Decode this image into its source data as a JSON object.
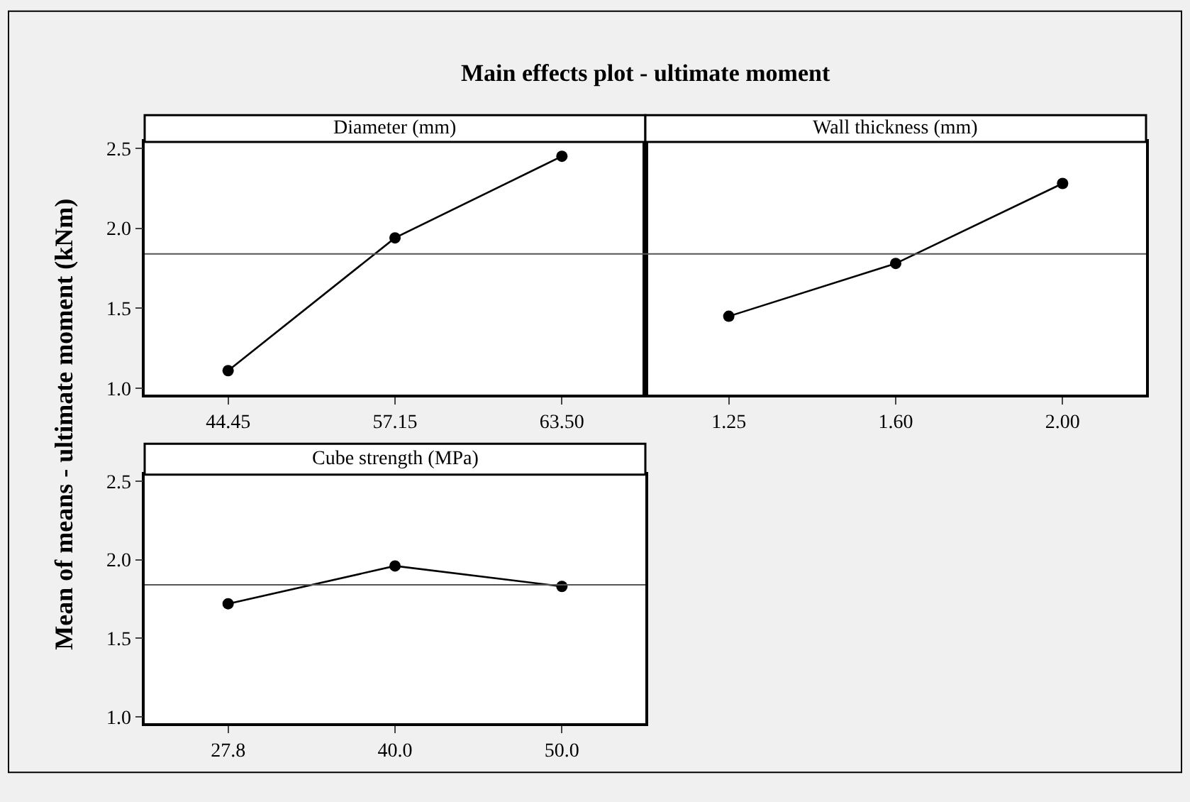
{
  "chart_data": [
    {
      "type": "line",
      "title": "Main effects plot - ultimate moment",
      "ylabel": "Mean of means - ultimate moment (kNm)",
      "subtitle": "Diameter (mm)",
      "categories": [
        "44.45",
        "57.15",
        "63.50"
      ],
      "values": [
        1.11,
        1.94,
        2.45
      ],
      "color": "#000000",
      "ylim": [
        0.96,
        2.54
      ],
      "yticks": [
        {
          "value": 1.0,
          "label": "1.0"
        },
        {
          "value": 1.5,
          "label": "1.5"
        },
        {
          "value": 2.0,
          "label": "2.0"
        },
        {
          "value": 2.5,
          "label": "2.5"
        }
      ],
      "ref_lines": [
        {
          "axis": "y",
          "value": 1.84,
          "color": "#555555"
        }
      ],
      "marker": "circle",
      "line_style": "solid"
    },
    {
      "type": "line",
      "subtitle": "Wall thickness (mm)",
      "categories": [
        "1.25",
        "1.60",
        "2.00"
      ],
      "values": [
        1.45,
        1.78,
        2.28
      ],
      "color": "#000000",
      "ylim": [
        0.96,
        2.54
      ],
      "tick_labels": "x",
      "ref_lines": [
        {
          "axis": "y",
          "value": 1.84,
          "color": "#555555"
        }
      ],
      "marker": "circle",
      "line_style": "solid"
    },
    {
      "type": "line",
      "subtitle": "Cube strength (MPa)",
      "categories": [
        "27.8",
        "40.0",
        "50.0"
      ],
      "values": [
        1.72,
        1.96,
        1.83
      ],
      "color": "#000000",
      "ylim": [
        0.96,
        2.54
      ],
      "yticks": [
        {
          "value": 1.0,
          "label": "1.0"
        },
        {
          "value": 1.5,
          "label": "1.5"
        },
        {
          "value": 2.0,
          "label": "2.0"
        },
        {
          "value": 2.5,
          "label": "2.5"
        }
      ],
      "ref_lines": [
        {
          "axis": "y",
          "value": 1.84,
          "color": "#555555"
        }
      ],
      "marker": "circle",
      "line_style": "solid"
    }
  ]
}
